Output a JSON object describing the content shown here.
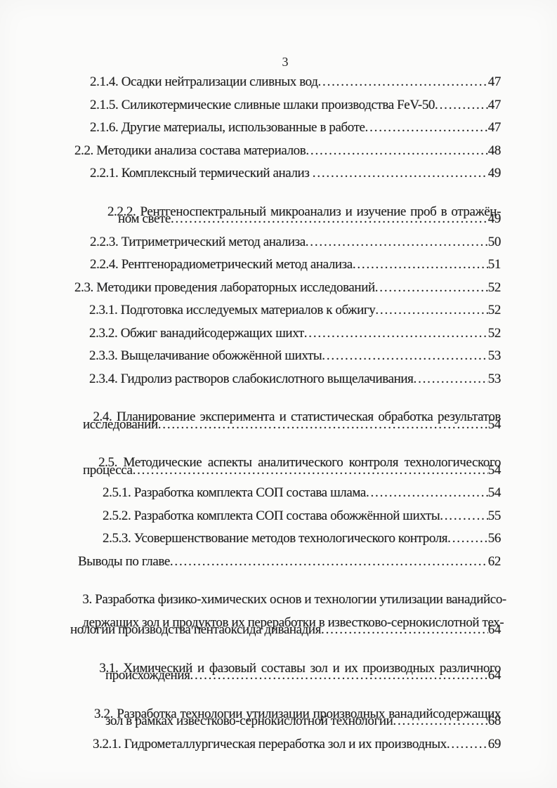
{
  "page": {
    "number": "3"
  },
  "colors": {
    "ink": "#1f1f1f",
    "paper": "#fbfbfa"
  },
  "toc": {
    "lines": [
      {
        "text": "2.1.4. Осадки нейтрализации сливных вод",
        "page": "47",
        "level": "sub-a"
      },
      {
        "text": "2.1.5. Силикотермические сливные шлаки производства FeV-50",
        "page": "47",
        "level": "sub-a"
      },
      {
        "text": "2.1.6. Другие материалы, использованные в работе",
        "page": "47",
        "level": "sub-a"
      },
      {
        "text": "2.2. Методики анализа состава материалов",
        "page": "48",
        "level": "sec"
      },
      {
        "text": "2.2.1. Комплексный термический анализ ",
        "page": "49",
        "level": "sub-a"
      },
      {
        "text": "2.2.2. Рентгеноспектральный микроанализ и изучение проб в отражён-",
        "page": null,
        "level": "sub-a"
      },
      {
        "text": "ном свете",
        "page": "49",
        "level": "cont-sub"
      },
      {
        "text": "2.2.3. Титриметрический метод анализа",
        "page": "50",
        "level": "sub-a"
      },
      {
        "text": "2.2.4. Рентгенорадиометрический метод анализа",
        "page": "51",
        "level": "sub-a"
      },
      {
        "text": "2.3. Методики проведения лабораторных исследований",
        "page": "52",
        "level": "sec"
      },
      {
        "text": "2.3.1. Подготовка исследуемых материалов к обжигу",
        "page": "52",
        "level": "sub-b"
      },
      {
        "text": "2.3.2. Обжиг ванадийсодержащих шихт",
        "page": "52",
        "level": "sub-b"
      },
      {
        "text": "2.3.3. Выщелачивание обожжённой шихты",
        "page": "53",
        "level": "sub-b"
      },
      {
        "text": "2.3.4. Гидролиз растворов слабокислотного выщелачивания",
        "page": "53",
        "level": "sub-b"
      },
      {
        "text": "2.4. Планирование эксперимента и статистическая обработка результатов",
        "page": null,
        "level": "sec"
      },
      {
        "text": "исследований",
        "page": "54",
        "level": "cont-sec"
      },
      {
        "text": "2.5. Методические аспекты аналитического контроля технологического",
        "page": null,
        "level": "sec"
      },
      {
        "text": "процесса",
        "page": "54",
        "level": "cont-sec"
      },
      {
        "text": "2.5.1. Разработка комплекта СОП состава шлама",
        "page": "54",
        "level": "sub-c"
      },
      {
        "text": "2.5.2. Разработка комплекта СОП состава обожжённой шихты",
        "page": "55",
        "level": "sub-c"
      },
      {
        "text": "2.5.3. Усовершенствование методов технологического контроля",
        "page": "56",
        "level": "sub-c"
      },
      {
        "text": "Выводы по главе",
        "page": "62",
        "level": "vyv"
      },
      {
        "text": "3. Разработка физико-химических основ и технологии утилизации ванадийсо-",
        "page": null,
        "level": "ch"
      },
      {
        "text": "держащих зол и продуктов их переработки в известково-сернокислотной тех-",
        "page": null,
        "level": "ch"
      },
      {
        "text": "нологии производства пентаоксида диванадия",
        "page": "64",
        "level": "ch"
      },
      {
        "text": "3.1. Химический и фазовый составы зол и их производных различного",
        "page": null,
        "level": "sec3"
      },
      {
        "text": "происхождения",
        "page": "64",
        "level": "cont-3"
      },
      {
        "text": "3.2. Разработка технологии утилизации производных ванадийсодержащих",
        "page": null,
        "level": "sec3"
      },
      {
        "text": "зол в рамках известково-сернокислотной технологии",
        "page": "68",
        "level": "cont-3"
      },
      {
        "text": "3.2.1. Гидрометаллургическая переработка зол и их производных",
        "page": "69",
        "level": "sub-d"
      }
    ]
  }
}
